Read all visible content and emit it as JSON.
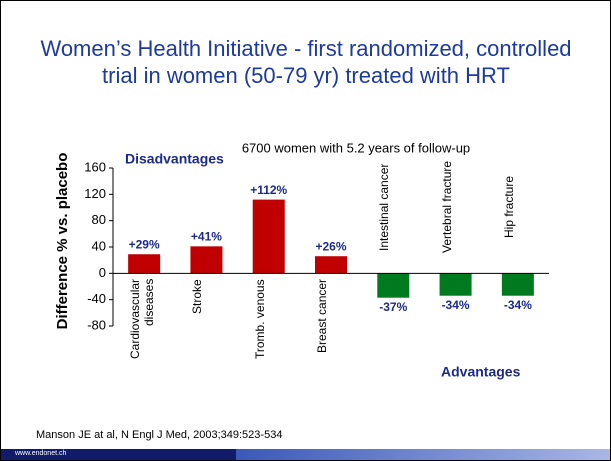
{
  "chart_data": {
    "type": "bar",
    "title": "Women’s Health Initiative - first randomized, controlled trial in women (50-79 yr) treated with HRT",
    "subtitle": "6700 women  with 5.2 years of follow-up",
    "ylabel": "Difference % vs. placebo",
    "categories": [
      "Cardiovascular diseases",
      "Stroke",
      "Tromb. venous",
      "Breast cancer",
      "Intestinal cancer",
      "Vertebral fracture",
      "Hip fracture"
    ],
    "values": [
      29,
      41,
      112,
      26,
      -37,
      -34,
      -34
    ],
    "value_labels": [
      "+29%",
      "+41%",
      "+112%",
      "+26%",
      "-37%",
      "-34%",
      "-34%"
    ],
    "colors": [
      "#c00000",
      "#c00000",
      "#c00000",
      "#c00000",
      "#007a1e",
      "#007a1e",
      "#007a1e"
    ],
    "ylim": [
      -80,
      160
    ],
    "yticks": [
      -80,
      -40,
      0,
      40,
      80,
      120,
      160
    ],
    "annotations": [
      "Disadvantages",
      "Advantages"
    ]
  },
  "footer": {
    "citation": "Manson JE at al, N Engl J Med, 2003;349:523-534",
    "site": "www.endonet.ch"
  }
}
